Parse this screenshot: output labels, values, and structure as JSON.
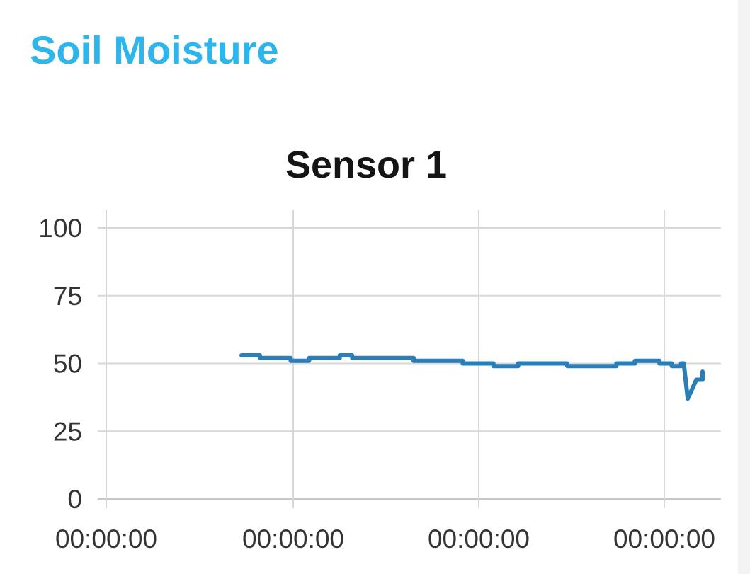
{
  "header": {
    "title": "Soil Moisture"
  },
  "colors": {
    "header_title": "#2cb6ec",
    "series_line": "#2a7db7",
    "grid": "#d8d8d8"
  },
  "chart_data": {
    "type": "line",
    "title": "Sensor 1",
    "xlabel": "",
    "ylabel": "",
    "ylim": [
      0,
      100
    ],
    "yticks": [
      0,
      25,
      50,
      75,
      100
    ],
    "xtick_labels": [
      "00:00:00",
      "00:00:00",
      "00:00:00",
      "00:00:00"
    ],
    "grid": true,
    "legend": "none",
    "series": [
      {
        "x": [
          0.22,
          0.25,
          0.28,
          0.3,
          0.33,
          0.36,
          0.38,
          0.4,
          0.43,
          0.46,
          0.5,
          0.52,
          0.55,
          0.58,
          0.61,
          0.63,
          0.65,
          0.67,
          0.7,
          0.73,
          0.75,
          0.76,
          0.78,
          0.8,
          0.83,
          0.86,
          0.89,
          0.9,
          0.92,
          0.935,
          0.94,
          0.946,
          0.96,
          0.97
        ],
        "values": [
          53,
          52,
          52,
          51,
          52,
          52,
          53,
          52,
          52,
          52,
          51,
          51,
          51,
          50,
          50,
          49,
          49,
          50,
          50,
          50,
          49,
          49,
          49,
          49,
          50,
          51,
          51,
          50,
          49,
          50,
          49,
          37,
          44,
          47
        ]
      }
    ]
  }
}
